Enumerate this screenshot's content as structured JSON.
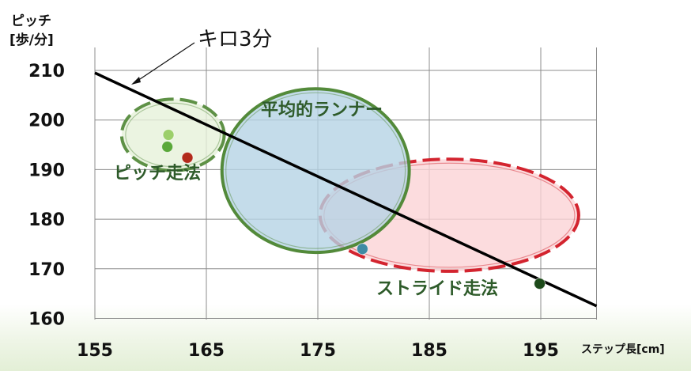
{
  "chart_data": {
    "type": "scatter",
    "ylabel_lines": [
      "ピッチ",
      "[歩/分]"
    ],
    "xlabel": "ステップ長[cm]",
    "xlim": [
      155,
      200
    ],
    "ylim": [
      160,
      213
    ],
    "xticks": [
      155,
      165,
      175,
      185,
      195
    ],
    "yticks": [
      160,
      170,
      180,
      190,
      200,
      210
    ],
    "grid": true,
    "reference_line": {
      "label": "キロ3分",
      "x": [
        155,
        200
      ],
      "y": [
        209.5,
        162.5
      ]
    },
    "regions": [
      {
        "label": "ピッチ走法",
        "center": [
          162,
          197
        ],
        "rx": 4.6,
        "ry": 7.2,
        "fill": "#e6f1d9",
        "stroke": "#5e9146",
        "dashed": true
      },
      {
        "label": "平均的ランナー",
        "center": [
          174.8,
          189.8
        ],
        "rx": 8.4,
        "ry": 16.5,
        "fill": "#b5d3e5",
        "stroke": "#538a3a",
        "dashed": false
      },
      {
        "label": "ストライド走法",
        "center": [
          186.8,
          180.8
        ],
        "rx": 11.6,
        "ry": 11.3,
        "fill": "#fbd3d6",
        "stroke": "#d3242f",
        "dashed": true
      }
    ],
    "points": [
      {
        "x": 161.6,
        "y": 197,
        "color": "#9ccf6a"
      },
      {
        "x": 161.5,
        "y": 194.6,
        "color": "#5aa83a"
      },
      {
        "x": 163.3,
        "y": 192.4,
        "color": "#b22b1b"
      },
      {
        "x": 179.0,
        "y": 174.0,
        "color": "#3f8ba4"
      },
      {
        "x": 194.9,
        "y": 167.0,
        "color": "#1d4a1a"
      }
    ]
  }
}
